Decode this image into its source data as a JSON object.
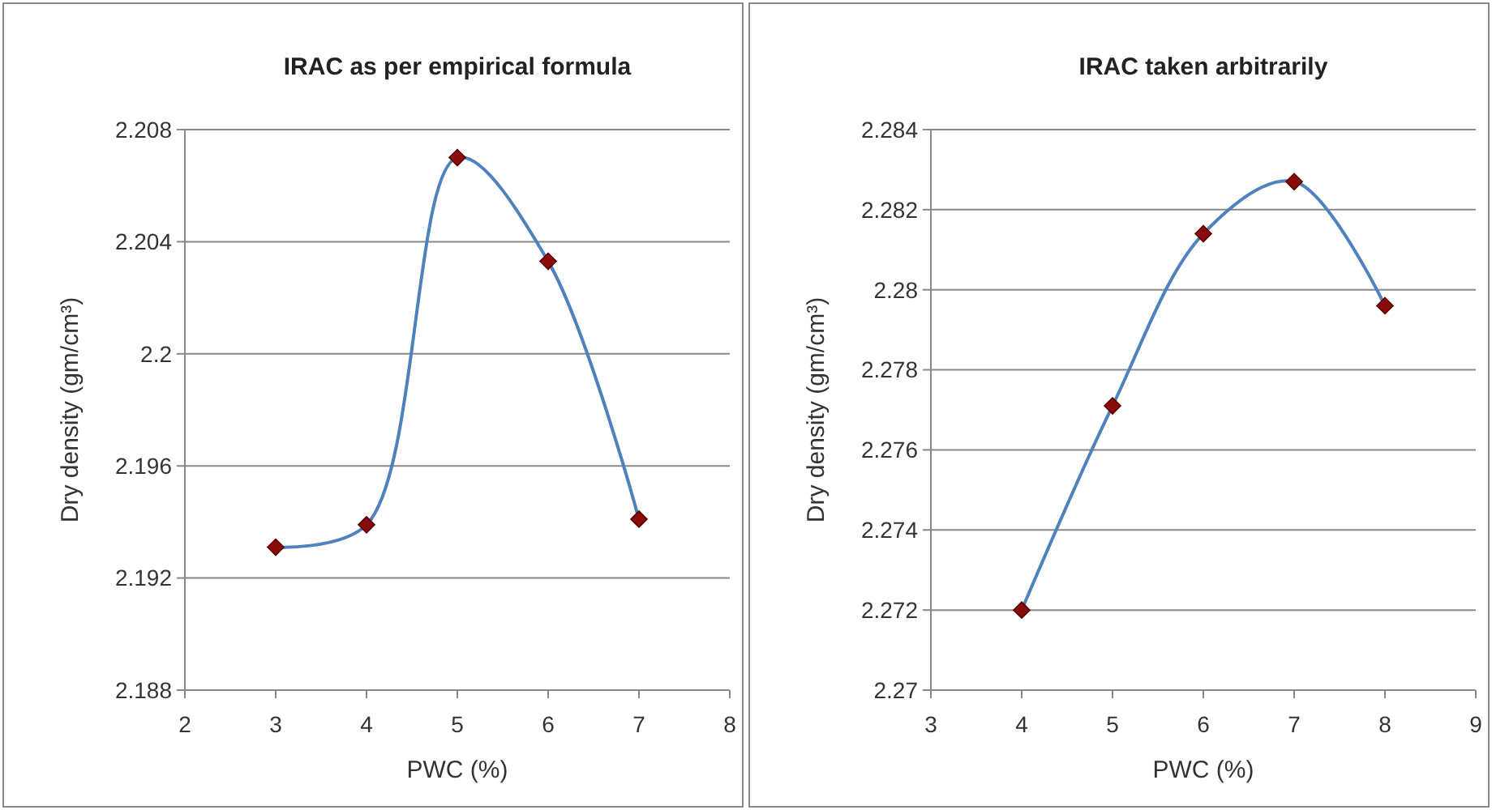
{
  "chart_data": [
    {
      "type": "line",
      "title": "IRAC as per empirical formula",
      "xlabel": "PWC (%)",
      "ylabel": "Dry density (gm/cm³)",
      "x": [
        3,
        4,
        5,
        6,
        7
      ],
      "series": [
        {
          "color": "#4f81bd",
          "values": [
            2.1931,
            2.1939,
            2.207,
            2.2033,
            2.1941
          ]
        }
      ],
      "xlim": [
        2,
        8
      ],
      "xticks": [
        2,
        3,
        4,
        5,
        6,
        7,
        8
      ],
      "ylim": [
        2.188,
        2.208
      ],
      "yticks": [
        2.188,
        2.192,
        2.196,
        2.2,
        2.204,
        2.208
      ],
      "grid": "y",
      "marker": "diamond",
      "line_style": "solid"
    },
    {
      "type": "line",
      "title": "IRAC taken arbitrarily",
      "xlabel": "PWC (%)",
      "ylabel": "Dry density (gm/cm³)",
      "x": [
        4,
        5,
        6,
        7,
        8
      ],
      "series": [
        {
          "color": "#4f81bd",
          "values": [
            2.272,
            2.2771,
            2.2814,
            2.2827,
            2.2796
          ]
        }
      ],
      "xlim": [
        3,
        9
      ],
      "xticks": [
        3,
        4,
        5,
        6,
        7,
        8,
        9
      ],
      "ylim": [
        2.27,
        2.284
      ],
      "yticks": [
        2.27,
        2.272,
        2.274,
        2.276,
        2.278,
        2.28,
        2.282,
        2.284
      ],
      "grid": "y",
      "marker": "diamond",
      "line_style": "solid"
    }
  ]
}
